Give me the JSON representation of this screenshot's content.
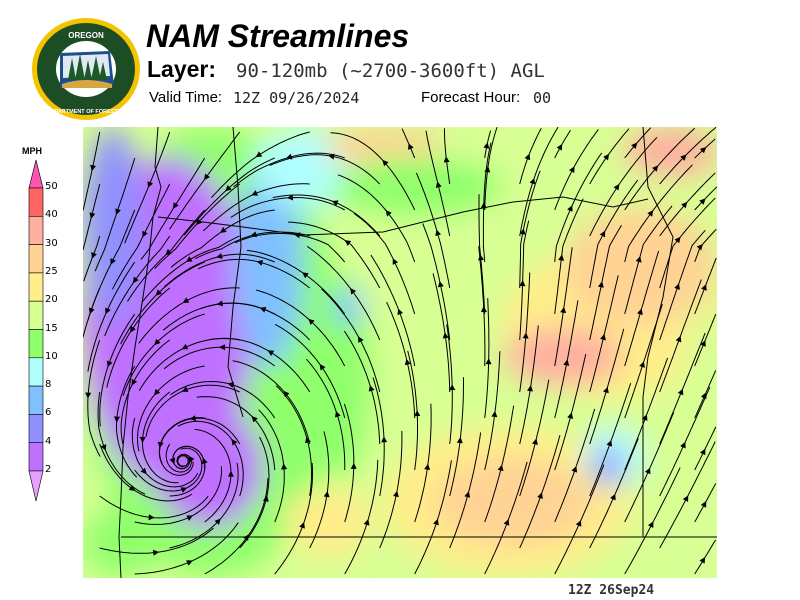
{
  "header": {
    "logo": {
      "name": "oregon-department-of-forestry-seal",
      "text_top": "OREGON",
      "text_bottom": "DEPARTMENT OF FORESTRY"
    },
    "title": "NAM Streamlines",
    "layer_label": "Layer:",
    "layer_value": "90-120mb (~2700-3600ft) AGL",
    "valid_label": "Valid Time:",
    "valid_value": "12Z 09/26/2024",
    "forecast_label": "Forecast Hour:",
    "forecast_value": "00"
  },
  "legend": {
    "unit": "MPH",
    "ticks": [
      "50",
      "40",
      "30",
      "25",
      "20",
      "15",
      "10",
      "8",
      "6",
      "4",
      "2"
    ],
    "bins": [
      {
        "range": ">50",
        "color": "#ff55b0"
      },
      {
        "range": "40-50",
        "color": "#ff6464"
      },
      {
        "range": "30-40",
        "color": "#ffb0a0"
      },
      {
        "range": "25-30",
        "color": "#ffd394"
      },
      {
        "range": "20-25",
        "color": "#ffee8a"
      },
      {
        "range": "15-20",
        "color": "#d8ff94"
      },
      {
        "range": "10-15",
        "color": "#90ff6c"
      },
      {
        "range": "8-10",
        "color": "#b0ffff"
      },
      {
        "range": "6-8",
        "color": "#80c0ff"
      },
      {
        "range": "4-6",
        "color": "#9090ff"
      },
      {
        "range": "2-4",
        "color": "#c070ff"
      },
      {
        "range": "<2",
        "color": "#e8a0ff"
      }
    ]
  },
  "map": {
    "streamline_color": "#000000"
  },
  "footer": {
    "timestamp": "12Z 26Sep24"
  }
}
